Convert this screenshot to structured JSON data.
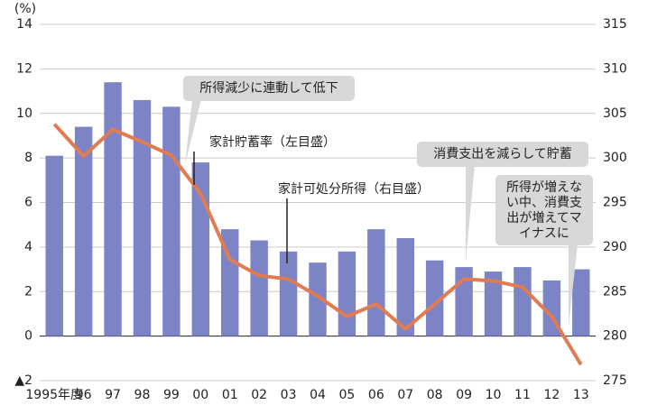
{
  "chart_data": {
    "type": "bar-line",
    "unit_label": "(%)",
    "categories": [
      "1995年度",
      "96",
      "97",
      "98",
      "99",
      "00",
      "01",
      "02",
      "03",
      "04",
      "05",
      "06",
      "07",
      "08",
      "09",
      "10",
      "11",
      "12",
      "13"
    ],
    "series": [
      {
        "name": "家計貯蓄率（左目盛）",
        "type": "bar",
        "color": "#7c84c6",
        "axis": "y",
        "values": [
          8.1,
          9.4,
          11.4,
          10.6,
          10.3,
          7.8,
          4.8,
          4.3,
          3.8,
          3.3,
          3.8,
          4.8,
          4.4,
          3.4,
          3.1,
          2.9,
          3.1,
          2.5,
          3.0
        ]
      },
      {
        "name": "家計可処分所得（右目盛）",
        "type": "line",
        "color": "#e07b52",
        "axis": "y2",
        "values": [
          303.8,
          300.2,
          303.2,
          301.8,
          300.3,
          296.0,
          288.6,
          286.8,
          286.4,
          284.5,
          282.2,
          283.6,
          280.8,
          283.6,
          286.4,
          286.2,
          285.5,
          282.2,
          276.8
        ]
      }
    ],
    "ylim": [
      -2,
      14
    ],
    "yticks": [
      {
        "value": -2,
        "label": "▲2"
      },
      0,
      2,
      4,
      6,
      8,
      10,
      12,
      14
    ],
    "y2lim": [
      275,
      315
    ],
    "y2ticks": [
      275,
      280,
      285,
      290,
      295,
      300,
      305,
      310,
      315
    ],
    "grid": true,
    "annotations": [
      {
        "lines": [
          "所得減少に連動して低下"
        ]
      },
      {
        "lines": [
          "消費支出を減らして貯蓄"
        ]
      },
      {
        "lines": [
          "所得が増えな",
          "い中、消費支",
          "出が増えてマ",
          "イナスに"
        ]
      }
    ]
  }
}
